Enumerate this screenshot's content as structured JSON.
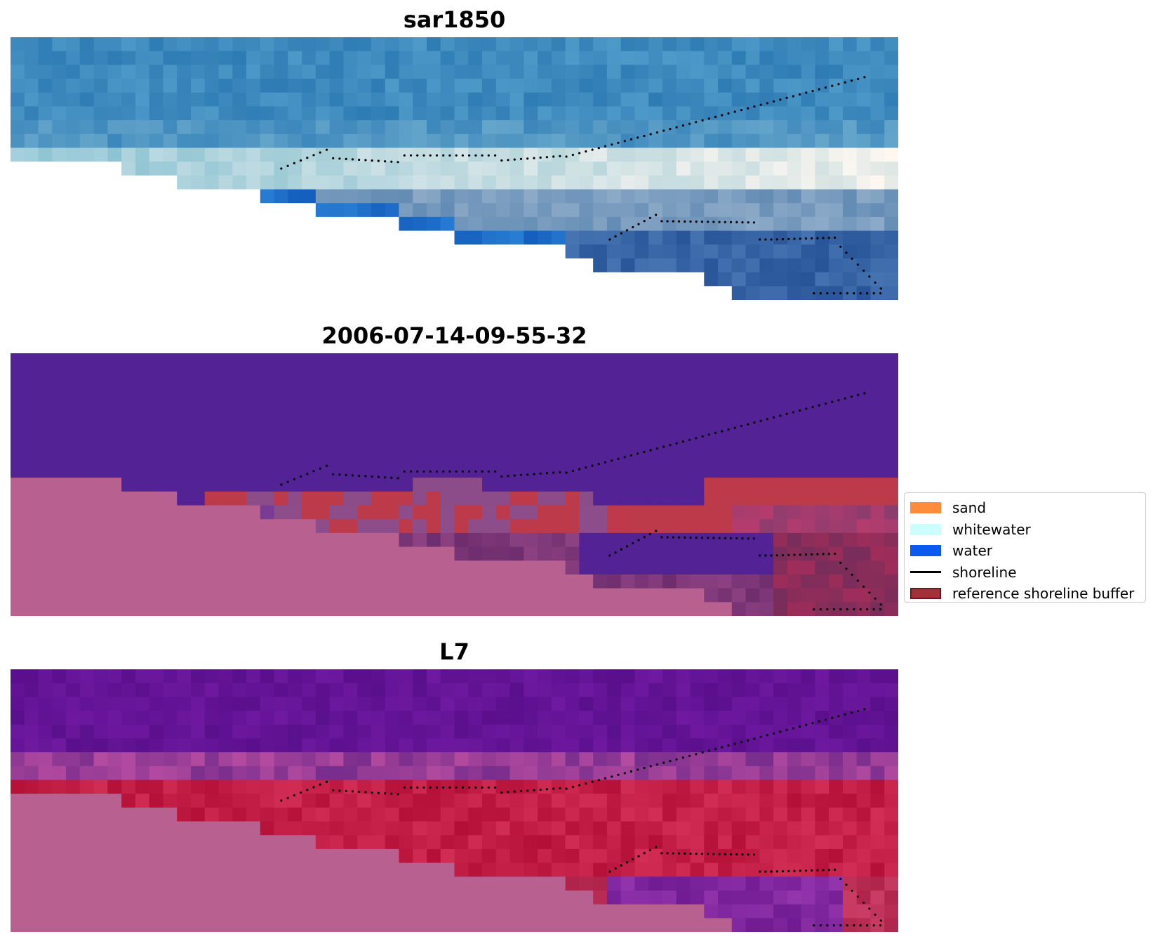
{
  "panels": [
    {
      "title": "sar1850",
      "style": "rgb"
    },
    {
      "title": "2006-07-14-09-55-32",
      "style": "classified"
    },
    {
      "title": "L7",
      "style": "index"
    }
  ],
  "legend": {
    "items": [
      {
        "label": "sand",
        "color": "#ff8c3c",
        "kind": "patch"
      },
      {
        "label": "whitewater",
        "color": "#ccffff",
        "kind": "patch"
      },
      {
        "label": "water",
        "color": "#0a5af0",
        "kind": "patch"
      },
      {
        "label": "shoreline",
        "color": "#000000",
        "kind": "line"
      },
      {
        "label": "reference shoreline buffer",
        "color": "#a03238",
        "kind": "patch"
      }
    ]
  }
}
